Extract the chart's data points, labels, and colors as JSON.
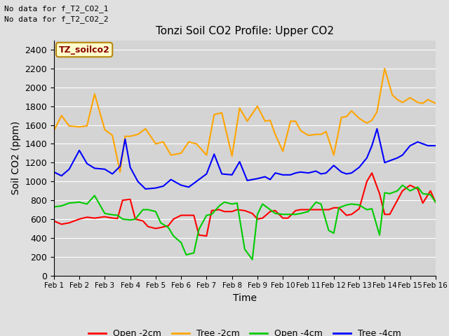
{
  "title": "Tonzi Soil CO2 Profile: Upper CO2",
  "xlabel": "Time",
  "ylabel": "Soil CO2 (ppm)",
  "annotations": [
    "No data for f_T2_CO2_1",
    "No data for f_T2_CO2_2"
  ],
  "legend_label": "TZ_soilco2",
  "ylim": [
    0,
    2500
  ],
  "xlim": [
    0,
    15
  ],
  "xtick_labels": [
    "Feb 1",
    "Feb 2",
    "Feb 3",
    "Feb 4",
    "Feb 5",
    "Feb 6",
    "Feb 7",
    "Feb 8",
    "Feb 9",
    "Feb 10",
    "Feb 11",
    "Feb 12",
    "Feb 13",
    "Feb 14",
    "Feb 15",
    "Feb 16"
  ],
  "ytick_values": [
    0,
    200,
    400,
    600,
    800,
    1000,
    1200,
    1400,
    1600,
    1800,
    2000,
    2200,
    2400
  ],
  "bg_color": "#e0e0e0",
  "plot_bg_color": "#d4d4d4",
  "series": {
    "open_2cm": {
      "label": "Open -2cm",
      "color": "#ff0000",
      "x": [
        0,
        0.3,
        0.6,
        1.0,
        1.3,
        1.6,
        2.0,
        2.2,
        2.5,
        2.7,
        3.0,
        3.2,
        3.5,
        3.7,
        4.0,
        4.2,
        4.5,
        4.7,
        5.0,
        5.2,
        5.5,
        5.7,
        6.0,
        6.2,
        6.5,
        6.7,
        7.0,
        7.2,
        7.5,
        7.8,
        8.0,
        8.2,
        8.5,
        8.7,
        9.0,
        9.2,
        9.5,
        9.7,
        10.0,
        10.3,
        10.5,
        10.8,
        11.0,
        11.2,
        11.5,
        11.7,
        12.0,
        12.3,
        12.5,
        12.8,
        13.0,
        13.2,
        13.5,
        13.7,
        14.0,
        14.3,
        14.5,
        14.8,
        15.0
      ],
      "y": [
        580,
        545,
        560,
        600,
        620,
        610,
        625,
        615,
        605,
        800,
        810,
        600,
        580,
        520,
        500,
        510,
        530,
        600,
        640,
        640,
        640,
        430,
        420,
        690,
        700,
        680,
        680,
        700,
        690,
        660,
        600,
        610,
        680,
        690,
        610,
        610,
        690,
        700,
        700,
        700,
        700,
        700,
        720,
        720,
        640,
        650,
        710,
        1000,
        1090,
        870,
        650,
        650,
        800,
        900,
        960,
        920,
        770,
        900,
        780
      ]
    },
    "tree_2cm": {
      "label": "Tree -2cm",
      "color": "#ffa500",
      "x": [
        0,
        0.3,
        0.6,
        1.0,
        1.3,
        1.6,
        2.0,
        2.3,
        2.6,
        2.8,
        3.0,
        3.3,
        3.6,
        4.0,
        4.3,
        4.6,
        5.0,
        5.3,
        5.6,
        6.0,
        6.3,
        6.6,
        7.0,
        7.3,
        7.6,
        8.0,
        8.3,
        8.5,
        8.7,
        9.0,
        9.3,
        9.5,
        9.7,
        10.0,
        10.3,
        10.5,
        10.7,
        11.0,
        11.3,
        11.5,
        11.7,
        12.0,
        12.3,
        12.5,
        12.7,
        13.0,
        13.3,
        13.5,
        13.7,
        14.0,
        14.3,
        14.5,
        14.7,
        15.0
      ],
      "y": [
        1540,
        1700,
        1590,
        1580,
        1590,
        1930,
        1550,
        1490,
        1100,
        1480,
        1480,
        1500,
        1560,
        1400,
        1420,
        1280,
        1300,
        1420,
        1400,
        1280,
        1710,
        1730,
        1270,
        1780,
        1640,
        1800,
        1640,
        1650,
        1500,
        1320,
        1640,
        1640,
        1540,
        1490,
        1500,
        1500,
        1530,
        1280,
        1680,
        1690,
        1750,
        1670,
        1620,
        1650,
        1740,
        2200,
        1920,
        1870,
        1840,
        1890,
        1840,
        1830,
        1870,
        1830
      ]
    },
    "open_4cm": {
      "label": "Open -4cm",
      "color": "#00cc00",
      "x": [
        0,
        0.3,
        0.6,
        1.0,
        1.3,
        1.6,
        2.0,
        2.2,
        2.5,
        2.7,
        3.0,
        3.2,
        3.5,
        3.7,
        4.0,
        4.2,
        4.5,
        4.7,
        5.0,
        5.2,
        5.5,
        5.7,
        6.0,
        6.2,
        6.5,
        6.7,
        7.0,
        7.2,
        7.5,
        7.8,
        8.0,
        8.2,
        8.5,
        8.7,
        9.0,
        9.2,
        9.5,
        9.7,
        10.0,
        10.3,
        10.5,
        10.8,
        11.0,
        11.2,
        11.5,
        11.7,
        12.0,
        12.3,
        12.5,
        12.8,
        13.0,
        13.2,
        13.5,
        13.7,
        14.0,
        14.3,
        14.5,
        14.8,
        15.0
      ],
      "y": [
        730,
        740,
        770,
        780,
        760,
        850,
        660,
        650,
        640,
        600,
        590,
        600,
        700,
        700,
        680,
        560,
        510,
        420,
        350,
        220,
        240,
        490,
        640,
        650,
        740,
        780,
        760,
        770,
        280,
        170,
        650,
        760,
        700,
        660,
        650,
        650,
        650,
        660,
        680,
        780,
        760,
        480,
        450,
        720,
        750,
        760,
        750,
        700,
        710,
        430,
        880,
        870,
        900,
        960,
        900,
        940,
        870,
        860,
        780
      ]
    },
    "tree_4cm": {
      "label": "Tree -4cm",
      "color": "#0000ff",
      "x": [
        0,
        0.3,
        0.6,
        1.0,
        1.3,
        1.6,
        2.0,
        2.3,
        2.6,
        2.8,
        3.0,
        3.3,
        3.6,
        4.0,
        4.3,
        4.6,
        5.0,
        5.3,
        5.6,
        6.0,
        6.3,
        6.6,
        7.0,
        7.3,
        7.6,
        8.0,
        8.3,
        8.5,
        8.7,
        9.0,
        9.3,
        9.5,
        9.7,
        10.0,
        10.3,
        10.5,
        10.7,
        11.0,
        11.3,
        11.5,
        11.7,
        12.0,
        12.3,
        12.5,
        12.7,
        13.0,
        13.3,
        13.5,
        13.7,
        14.0,
        14.3,
        14.5,
        14.7,
        15.0
      ],
      "y": [
        1100,
        1060,
        1130,
        1330,
        1190,
        1140,
        1130,
        1080,
        1160,
        1450,
        1150,
        1000,
        920,
        930,
        950,
        1020,
        960,
        940,
        1000,
        1080,
        1290,
        1080,
        1070,
        1210,
        1010,
        1030,
        1050,
        1020,
        1090,
        1070,
        1070,
        1090,
        1100,
        1090,
        1110,
        1080,
        1090,
        1170,
        1100,
        1080,
        1090,
        1150,
        1250,
        1380,
        1560,
        1200,
        1230,
        1250,
        1280,
        1380,
        1420,
        1400,
        1380,
        1380
      ]
    }
  }
}
